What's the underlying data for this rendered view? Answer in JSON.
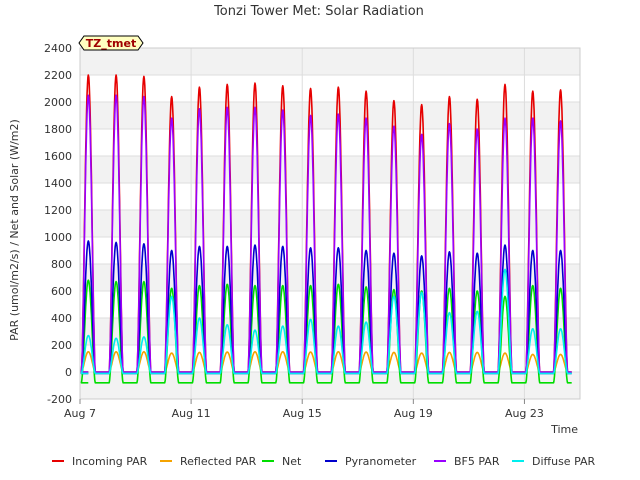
{
  "chart_data": {
    "type": "line",
    "title": "Tonzi Tower Met: Solar Radiation",
    "xlabel": "Time",
    "ylabel": "PAR (umol/m2/s) / Net and Solar (W/m2)",
    "badge": "TZ_tmet",
    "ylim": [
      -200,
      2400
    ],
    "yticks": [
      -200,
      0,
      200,
      400,
      600,
      800,
      1000,
      1200,
      1400,
      1600,
      1800,
      2000,
      2200,
      2400
    ],
    "xlim_day": [
      7.0,
      25.0
    ],
    "xticks": [
      {
        "day": 7,
        "label": "Aug 7"
      },
      {
        "day": 11,
        "label": "Aug 11"
      },
      {
        "day": 15,
        "label": "Aug 15"
      },
      {
        "day": 19,
        "label": "Aug 19"
      },
      {
        "day": 23,
        "label": "Aug 23"
      }
    ],
    "grid": true,
    "background_bands": true,
    "legend_position": "bottom",
    "days": [
      7.3,
      8.3,
      9.3,
      10.3,
      11.3,
      12.3,
      13.3,
      14.3,
      15.3,
      16.3,
      17.3,
      18.3,
      19.3,
      20.3,
      21.3,
      22.3,
      23.3,
      24.3
    ],
    "series": [
      {
        "name": "Incoming PAR",
        "color": "#e60000",
        "night": 0,
        "peaks": [
          2200,
          2200,
          2190,
          2040,
          2110,
          2130,
          2140,
          2120,
          2100,
          2110,
          2080,
          2010,
          1980,
          2040,
          2020,
          2130,
          2080,
          2090
        ]
      },
      {
        "name": "Reflected PAR",
        "color": "#f5a300",
        "night": 0,
        "peaks": [
          150,
          150,
          150,
          140,
          145,
          148,
          150,
          150,
          148,
          150,
          148,
          145,
          140,
          145,
          145,
          140,
          130,
          130
        ]
      },
      {
        "name": "Net",
        "color": "#00dd00",
        "night": -80,
        "peaks": [
          680,
          670,
          670,
          620,
          640,
          650,
          640,
          640,
          640,
          650,
          630,
          610,
          600,
          620,
          600,
          560,
          640,
          620
        ]
      },
      {
        "name": "Pyranometer",
        "color": "#0000cc",
        "night": -10,
        "peaks": [
          970,
          960,
          950,
          900,
          930,
          930,
          940,
          930,
          920,
          920,
          900,
          880,
          860,
          890,
          880,
          940,
          900,
          900
        ]
      },
      {
        "name": "BF5 PAR",
        "color": "#9900ff",
        "night": 0,
        "peaks": [
          2050,
          2050,
          2040,
          1880,
          1950,
          1960,
          1960,
          1940,
          1900,
          1910,
          1880,
          1820,
          1760,
          1840,
          1800,
          1880,
          1880,
          1860
        ]
      },
      {
        "name": "Diffuse PAR",
        "color": "#00eeee",
        "night": -10,
        "peaks": [
          270,
          250,
          260,
          560,
          400,
          350,
          310,
          340,
          390,
          340,
          370,
          560,
          590,
          440,
          450,
          760,
          320,
          320
        ]
      }
    ]
  }
}
